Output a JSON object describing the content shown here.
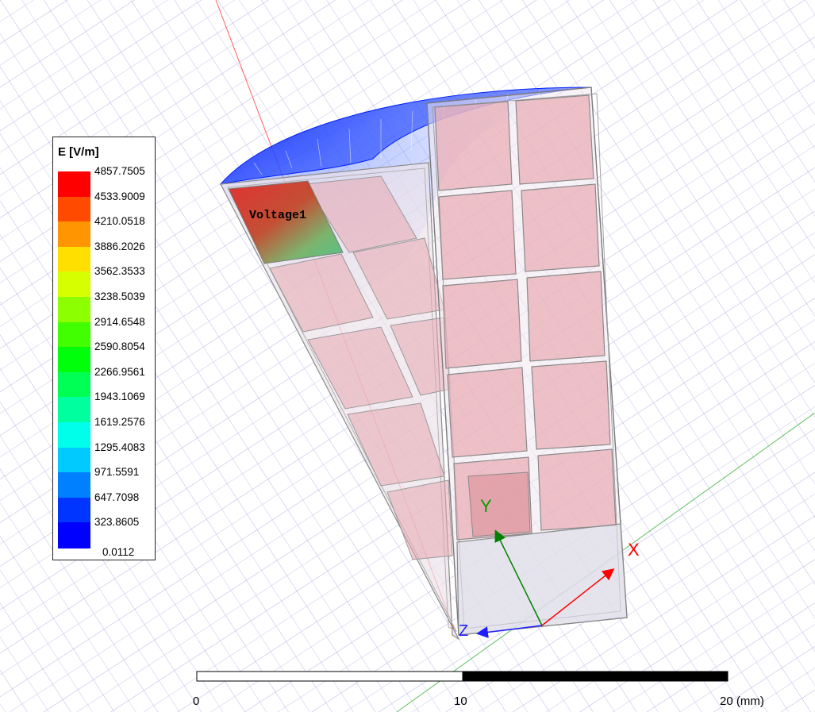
{
  "legend": {
    "title": "E [V/m]",
    "ticks": [
      "4857.7505",
      "4533.9009",
      "4210.0518",
      "3886.2026",
      "3562.3533",
      "3238.5039",
      "2914.6548",
      "2590.8054",
      "2266.9561",
      "1943.1069",
      "1619.2576",
      "1295.4083",
      "971.5591",
      "647.7098",
      "323.8605",
      "0.0112"
    ],
    "colors": [
      "#ff0000",
      "#ff4a00",
      "#ff9500",
      "#ffdf00",
      "#d6ff00",
      "#8cff00",
      "#41ff00",
      "#00ff0a",
      "#00ff55",
      "#00ff9f",
      "#00ffea",
      "#00caff",
      "#0080ff",
      "#0035ff",
      "#0000ff"
    ]
  },
  "port_label": "Voltage1",
  "axes": {
    "x": "X",
    "y": "Y",
    "z": "Z"
  },
  "axis_colors": {
    "x": "#ff0000",
    "y": "#00a000",
    "z": "#2020ff"
  },
  "scale_bar": {
    "start": "0",
    "mid": "10",
    "end": "20 (mm)"
  }
}
